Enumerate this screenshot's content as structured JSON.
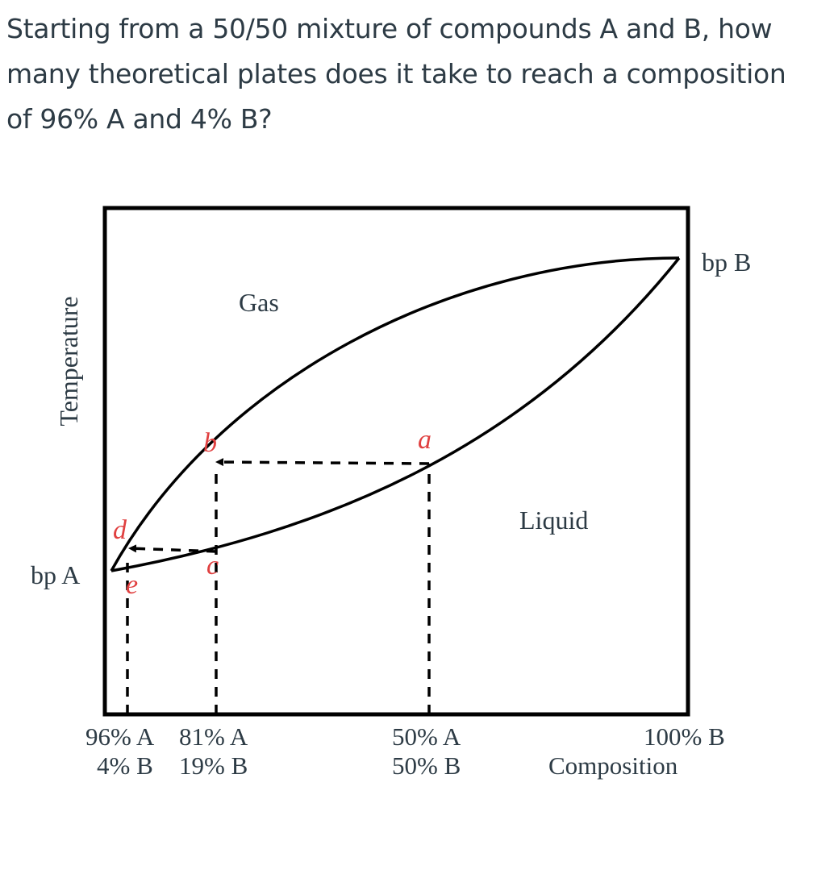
{
  "question": {
    "text": "Starting from a 50/50 mixture of compounds A and B, how many theoretical plates does it take to reach a composition of 96% A and 4% B?"
  },
  "diagram": {
    "y_axis_label": "Temperature",
    "bp_a_label": "bp A",
    "bp_b_label": "bp B",
    "gas_label": "Gas",
    "liquid_label": "Liquid",
    "points": {
      "a": "a",
      "b": "b",
      "c": "c",
      "d": "d",
      "e": "e"
    },
    "x_labels": {
      "label_96A": "96% A",
      "label_4B": "4% B",
      "label_81A": "81% A",
      "label_19B": "19% B",
      "label_50A": "50% A",
      "label_50B": "50% B",
      "label_100B": "100% B",
      "composition": "Composition"
    },
    "colors": {
      "curve": "#000000",
      "point_labels": "#e04040",
      "text": "#2d3b45"
    }
  }
}
